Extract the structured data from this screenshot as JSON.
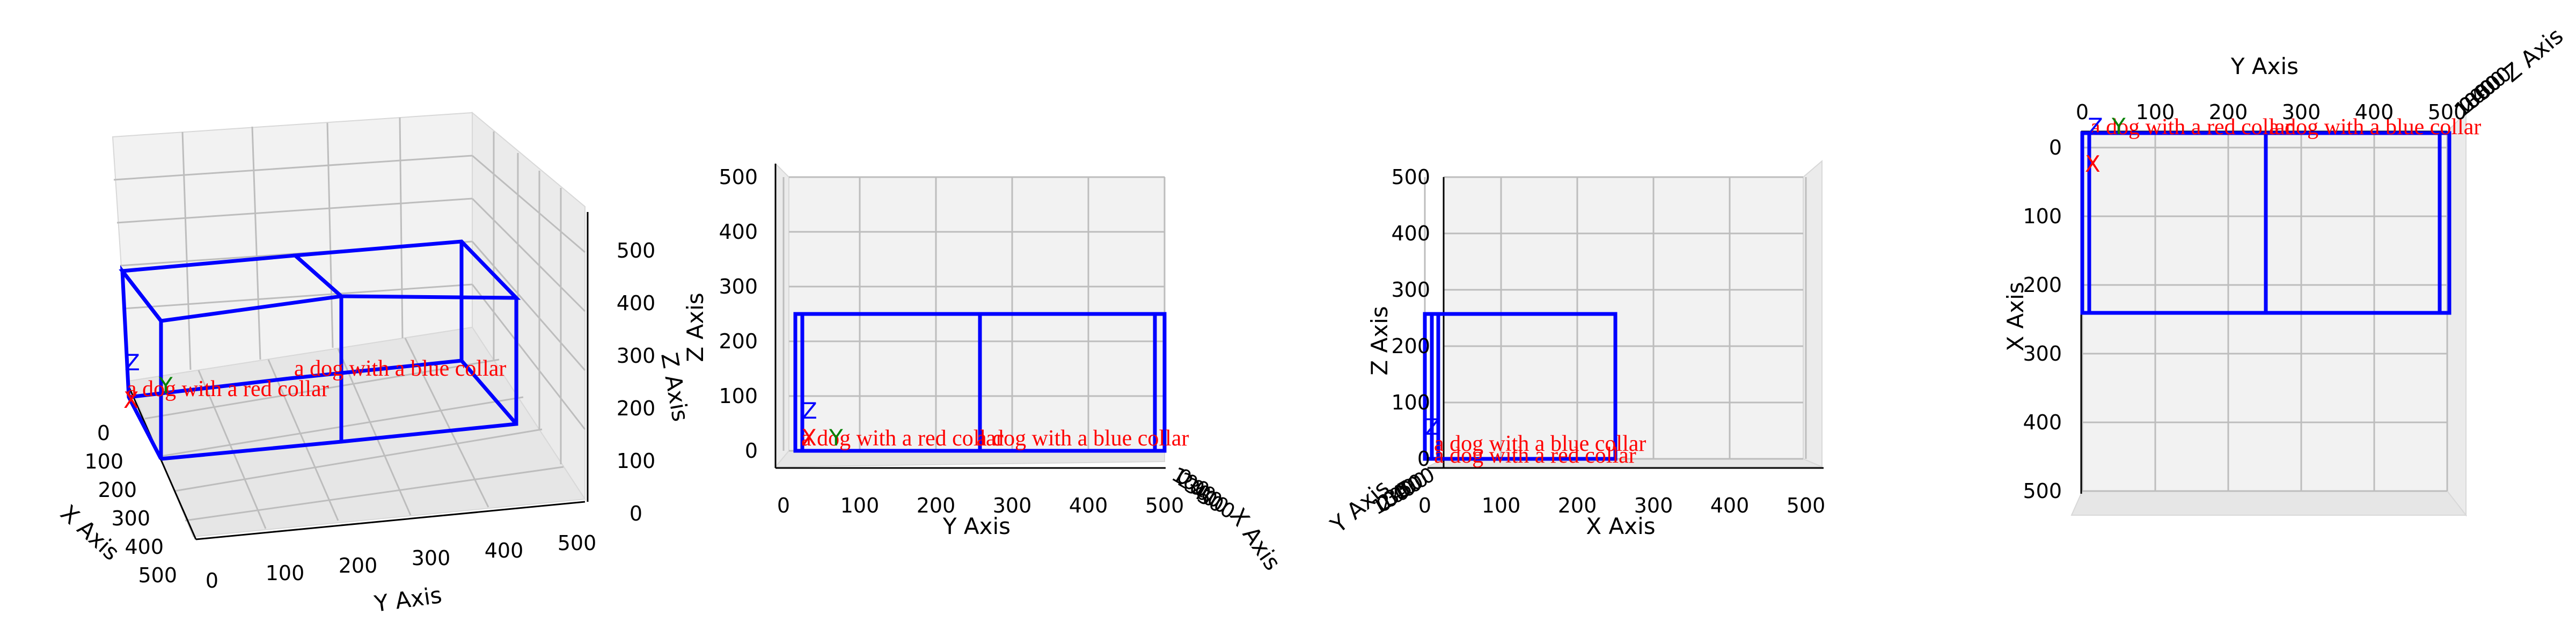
{
  "chart_data": [
    {
      "type": "3d-box",
      "view": "perspective",
      "xlabel": "X Axis",
      "ylabel": "Y Axis",
      "zlabel": "Z Axis",
      "xlim": [
        0,
        500
      ],
      "ylim": [
        0,
        500
      ],
      "zlim": [
        0,
        500
      ],
      "xticks": [
        "0",
        "100",
        "200",
        "300",
        "400",
        "500"
      ],
      "yticks": [
        "0",
        "100",
        "200",
        "300",
        "400",
        "500"
      ],
      "zticks": [
        "0",
        "100",
        "200",
        "300",
        "400",
        "500"
      ],
      "boxes": [
        {
          "label": "a dog with a red collar",
          "x": [
            10,
            260
          ],
          "y": [
            0,
            250
          ],
          "z": [
            0,
            260
          ]
        },
        {
          "label": "a dog with a blue collar",
          "x": [
            10,
            260
          ],
          "y": [
            250,
            500
          ],
          "z": [
            0,
            260
          ]
        }
      ],
      "origin_markers": [
        "X",
        "Y",
        "Z"
      ],
      "grid": true
    },
    {
      "type": "3d-box",
      "view": "front (Y-Z)",
      "xlabel": "Y Axis",
      "ylabel": "Z Axis",
      "depth_label": "X Axis",
      "xlim": [
        0,
        500
      ],
      "ylim": [
        0,
        500
      ],
      "xticks": [
        "0",
        "100",
        "200",
        "300",
        "400",
        "500"
      ],
      "yticks": [
        "0",
        "100",
        "200",
        "300",
        "400",
        "500"
      ],
      "depth_ticks": [
        "0",
        "100",
        "200",
        "300",
        "400",
        "500"
      ],
      "boxes": [
        {
          "label": "a dog with a red collar",
          "y": [
            20,
            260
          ],
          "z": [
            0,
            260
          ]
        },
        {
          "label": "a dog with a blue collar",
          "y": [
            260,
            500
          ],
          "z": [
            0,
            260
          ]
        }
      ],
      "grid": true
    },
    {
      "type": "3d-box",
      "view": "side (X-Z)",
      "xlabel": "X Axis",
      "ylabel": "Z Axis",
      "depth_label": "Y Axis",
      "xlim": [
        0,
        500
      ],
      "ylim": [
        0,
        500
      ],
      "xticks": [
        "0",
        "100",
        "200",
        "300",
        "400",
        "500"
      ],
      "yticks": [
        "0",
        "100",
        "200",
        "300",
        "400",
        "500"
      ],
      "depth_ticks": [
        "0",
        "100",
        "200",
        "300",
        "400",
        "500"
      ],
      "boxes": [
        {
          "label": "a dog with a blue collar",
          "x": [
            0,
            260
          ],
          "z": [
            0,
            260
          ]
        },
        {
          "label": "a dog with a red collar",
          "x": [
            0,
            260
          ],
          "z": [
            0,
            260
          ]
        }
      ],
      "grid": true
    },
    {
      "type": "3d-box",
      "view": "top (Y-X)",
      "xlabel": "Y Axis",
      "ylabel": "X Axis",
      "depth_label": "Z Axis",
      "xlim": [
        0,
        500
      ],
      "ylim": [
        0,
        500
      ],
      "xticks": [
        "0",
        "100",
        "200",
        "300",
        "400",
        "500"
      ],
      "yticks": [
        "0",
        "100",
        "200",
        "300",
        "400",
        "500"
      ],
      "depth_ticks": [
        "0",
        "100",
        "200",
        "300",
        "400",
        "500"
      ],
      "boxes": [
        {
          "label": "a dog with a red collar",
          "y": [
            0,
            250
          ],
          "x": [
            0,
            260
          ]
        },
        {
          "label": "a dog with a blue collar",
          "y": [
            250,
            500
          ],
          "x": [
            0,
            260
          ]
        }
      ],
      "grid": true
    }
  ],
  "colors": {
    "box_edge": "#0000ff",
    "annotation": "#ff0000",
    "marker_x": "#ff0000",
    "marker_y": "#008000",
    "marker_z": "#0000ff"
  }
}
